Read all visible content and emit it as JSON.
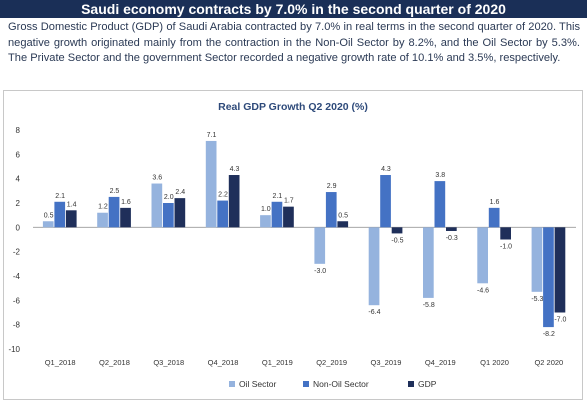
{
  "header": {
    "title": "Saudi economy contracts by 7.0% in the second quarter of 2020"
  },
  "intro": {
    "text": "Gross Domestic Product (GDP) of Saudi Arabia contracted by 7.0% in real terms in the second quarter of 2020. This negative growth originated mainly from the contraction in the Non-Oil Sector by 8.2%, and the Oil Sector by 5.3%. The Private Sector and the government Sector recorded a negative growth rate of 10.1% and 3.5%, respectively."
  },
  "colors": {
    "banner": "#1a2f57",
    "oil": "#95b3de",
    "nonoil": "#4472c4",
    "gdp": "#1f2f5a"
  },
  "chart_data": {
    "type": "bar",
    "title": "Real GDP Growth Q2 2020 (%)",
    "categories": [
      "Q1_2018",
      "Q2_2018",
      "Q3_2018",
      "Q4_2018",
      "Q1_2019",
      "Q2_2019",
      "Q3_2019",
      "Q4_2019",
      "Q1 2020",
      "Q2 2020"
    ],
    "series": [
      {
        "name": "Oil Sector",
        "color": "#95b3de",
        "values": [
          0.5,
          1.2,
          3.6,
          7.1,
          1.0,
          -3.0,
          -6.4,
          -5.8,
          -4.6,
          -5.3
        ]
      },
      {
        "name": "Non-Oil Sector",
        "color": "#4472c4",
        "values": [
          2.1,
          2.5,
          2.0,
          2.2,
          2.1,
          2.9,
          4.3,
          3.8,
          1.6,
          -8.2
        ]
      },
      {
        "name": "GDP",
        "color": "#1f2f5a",
        "values": [
          1.4,
          1.6,
          2.4,
          4.3,
          1.7,
          0.5,
          -0.5,
          -0.3,
          -1.0,
          -7.0
        ]
      }
    ],
    "ylim": [
      -10,
      8
    ],
    "yticks": [
      8,
      6,
      4,
      2,
      0,
      -2,
      -4,
      -6,
      -8,
      -10
    ],
    "grid": false,
    "legend": "bottom"
  }
}
